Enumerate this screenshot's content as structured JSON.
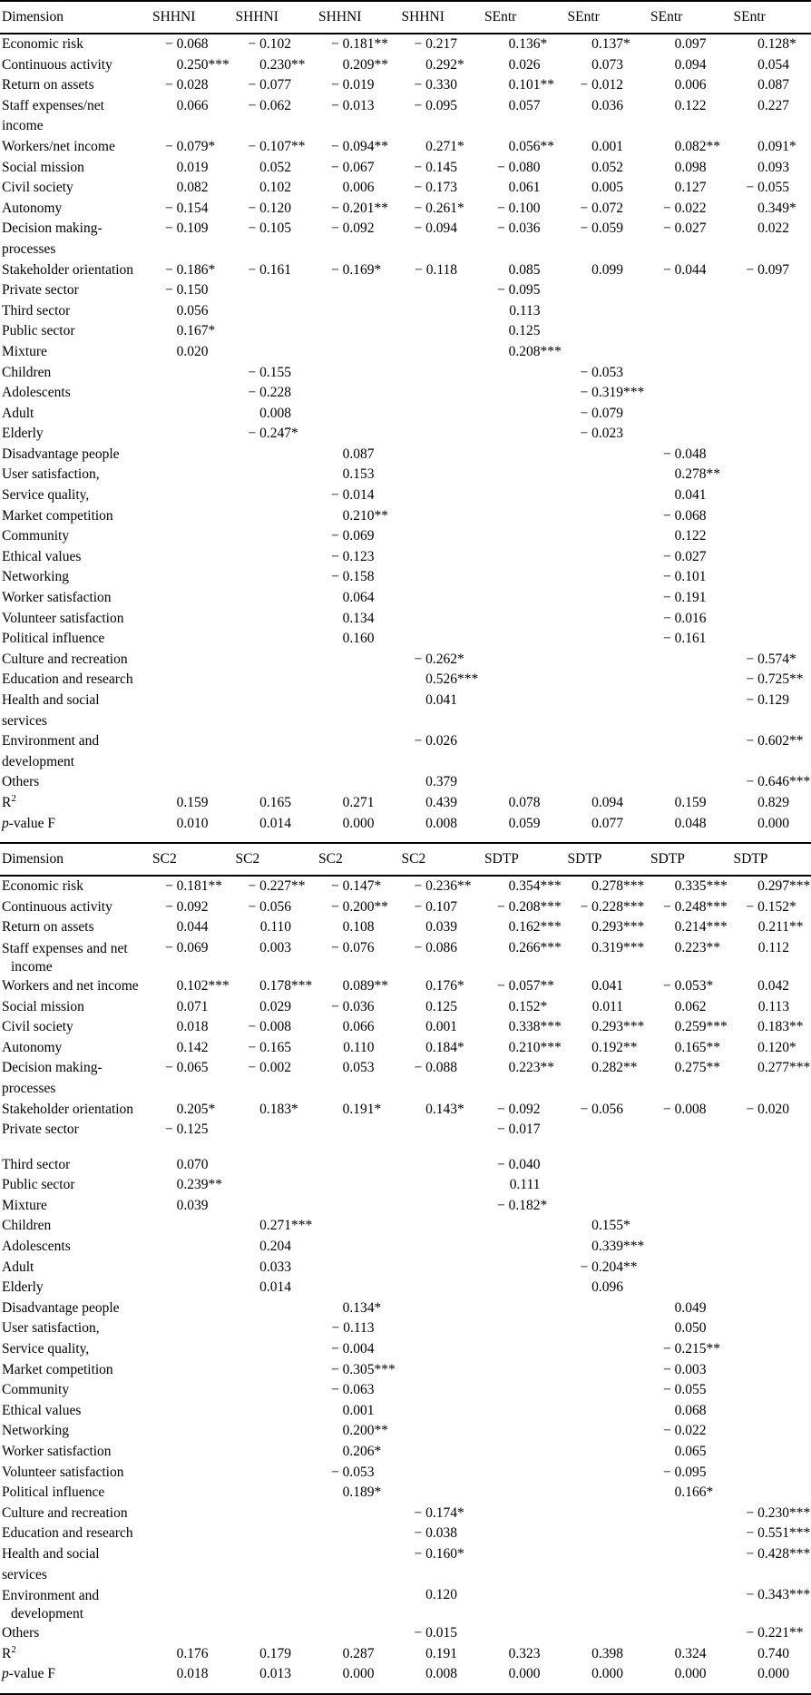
{
  "page": {
    "background": "#ffffff",
    "text_color": "#000000"
  },
  "tables": [
    {
      "columns": [
        "Dimension",
        "SHHNI",
        "SHHNI",
        "SHHNI",
        "SHHNI",
        "SEntr",
        "SEntr",
        "SEntr",
        "SEntr"
      ],
      "rows": [
        {
          "label": "Economic risk",
          "values": [
            "− 0.068",
            "− 0.102",
            "− 0.181**",
            "− 0.217",
            "0.136*",
            "0.137*",
            "0.097",
            "0.128*"
          ]
        },
        {
          "label": "Continuous activity",
          "values": [
            "0.250***",
            "0.230**",
            "0.209**",
            "0.292*",
            "0.026",
            "0.073",
            "0.094",
            "0.054"
          ]
        },
        {
          "label": "Return on assets",
          "values": [
            "− 0.028",
            "− 0.077",
            "− 0.019",
            "− 0.330",
            "0.101**",
            "− 0.012",
            "0.006",
            "0.087"
          ]
        },
        {
          "label": "Staff expenses/net income",
          "values": [
            "0.066",
            "− 0.062",
            "− 0.013",
            "− 0.095",
            "0.057",
            "0.036",
            "0.122",
            "0.227"
          ]
        },
        {
          "label": "Workers/net income",
          "values": [
            "− 0.079*",
            "− 0.107**",
            "− 0.094**",
            "0.271*",
            "0.056**",
            "0.001",
            "0.082**",
            "0.091*"
          ]
        },
        {
          "label": "Social mission",
          "values": [
            "0.019",
            "0.052",
            "− 0.067",
            "− 0.145",
            "− 0.080",
            "0.052",
            "0.098",
            "0.093"
          ]
        },
        {
          "label": "Civil society",
          "values": [
            "0.082",
            "0.102",
            "0.006",
            "− 0.173",
            "0.061",
            "0.005",
            "0.127",
            "− 0.055"
          ]
        },
        {
          "label": "Autonomy",
          "values": [
            "− 0.154",
            "− 0.120",
            "− 0.201**",
            "− 0.261*",
            "− 0.100",
            "− 0.072",
            "− 0.022",
            "0.349*"
          ]
        },
        {
          "label": "Decision making-processes",
          "values": [
            "− 0.109",
            "− 0.105",
            "− 0.092",
            "− 0.094",
            "− 0.036",
            "− 0.059",
            "− 0.027",
            "0.022"
          ]
        },
        {
          "label": "Stakeholder orientation",
          "values": [
            "− 0.186*",
            "− 0.161",
            "− 0.169*",
            "− 0.118",
            "0.085",
            "0.099",
            "− 0.044",
            "− 0.097"
          ]
        },
        {
          "label": "Private sector",
          "values": [
            "− 0.150",
            "",
            "",
            "",
            "− 0.095",
            "",
            "",
            ""
          ]
        },
        {
          "label": "Third sector",
          "values": [
            "0.056",
            "",
            "",
            "",
            "0.113",
            "",
            "",
            ""
          ]
        },
        {
          "label": "Public sector",
          "values": [
            "0.167*",
            "",
            "",
            "",
            "0.125",
            "",
            "",
            ""
          ]
        },
        {
          "label": "Mixture",
          "values": [
            "0.020",
            "",
            "",
            "",
            "0.208***",
            "",
            "",
            ""
          ]
        },
        {
          "label": "Children",
          "values": [
            "",
            "− 0.155",
            "",
            "",
            "",
            "− 0.053",
            "",
            ""
          ]
        },
        {
          "label": "Adolescents",
          "values": [
            "",
            "− 0.228",
            "",
            "",
            "",
            "− 0.319***",
            "",
            ""
          ]
        },
        {
          "label": "Adult",
          "values": [
            "",
            "0.008",
            "",
            "",
            "",
            "− 0.079",
            "",
            ""
          ]
        },
        {
          "label": "Elderly",
          "values": [
            "",
            "− 0.247*",
            "",
            "",
            "",
            "− 0.023",
            "",
            ""
          ]
        },
        {
          "label": "Disadvantage people",
          "values": [
            "",
            "",
            "0.087",
            "",
            "",
            "",
            "− 0.048",
            ""
          ]
        },
        {
          "label": "User satisfaction,",
          "values": [
            "",
            "",
            "0.153",
            "",
            "",
            "",
            "0.278**",
            ""
          ]
        },
        {
          "label": "Service quality,",
          "values": [
            "",
            "",
            "− 0.014",
            "",
            "",
            "",
            "0.041",
            ""
          ]
        },
        {
          "label": "Market competition",
          "values": [
            "",
            "",
            "0.210**",
            "",
            "",
            "",
            "− 0.068",
            ""
          ]
        },
        {
          "label": "Community",
          "values": [
            "",
            "",
            "− 0.069",
            "",
            "",
            "",
            "0.122",
            ""
          ]
        },
        {
          "label": "Ethical values",
          "values": [
            "",
            "",
            "− 0.123",
            "",
            "",
            "",
            "− 0.027",
            ""
          ]
        },
        {
          "label": "Networking",
          "values": [
            "",
            "",
            "− 0.158",
            "",
            "",
            "",
            "− 0.101",
            ""
          ]
        },
        {
          "label": "Worker satisfaction",
          "values": [
            "",
            "",
            "0.064",
            "",
            "",
            "",
            "− 0.191",
            ""
          ]
        },
        {
          "label": "Volunteer satisfaction",
          "values": [
            "",
            "",
            "0.134",
            "",
            "",
            "",
            "− 0.016",
            ""
          ]
        },
        {
          "label": "Political influence",
          "values": [
            "",
            "",
            "0.160",
            "",
            "",
            "",
            "− 0.161",
            ""
          ]
        },
        {
          "label": "Culture and recreation",
          "values": [
            "",
            "",
            "",
            "− 0.262*",
            "",
            "",
            "",
            "− 0.574*"
          ]
        },
        {
          "label": "Education and research",
          "values": [
            "",
            "",
            "",
            "0.526***",
            "",
            "",
            "",
            "− 0.725**"
          ]
        },
        {
          "label": "Health and social services",
          "values": [
            "",
            "",
            "",
            "0.041",
            "",
            "",
            "",
            "− 0.129"
          ]
        },
        {
          "label": "Environment and development",
          "values": [
            "",
            "",
            "",
            "− 0.026",
            "",
            "",
            "",
            "− 0.602**"
          ]
        },
        {
          "label": "Others",
          "values": [
            "",
            "",
            "",
            "0.379",
            "",
            "",
            "",
            "− 0.646***"
          ]
        },
        {
          "label": "R2",
          "style": "r2",
          "values": [
            "0.159",
            "0.165",
            "0.271",
            "0.439",
            "0.078",
            "0.094",
            "0.159",
            "0.829"
          ]
        },
        {
          "label": "p-value F",
          "style": "pf",
          "values": [
            "0.010",
            "0.014",
            "0.000",
            "0.008",
            "0.059",
            "0.077",
            "0.048",
            "0.000"
          ]
        }
      ]
    },
    {
      "columns": [
        "Dimension",
        "SC2",
        "SC2",
        "SC2",
        "SC2",
        "SDTP",
        "SDTP",
        "SDTP",
        "SDTP"
      ],
      "rows": [
        {
          "label": "Economic risk",
          "values": [
            "− 0.181**",
            "− 0.227**",
            "− 0.147*",
            "− 0.236**",
            "0.354***",
            "0.278***",
            "0.335***",
            "0.297***"
          ]
        },
        {
          "label": "Continuous activity",
          "values": [
            "− 0.092",
            "− 0.056",
            "− 0.200**",
            "− 0.107",
            "− 0.208***",
            "− 0.228***",
            "− 0.248***",
            "− 0.152*"
          ]
        },
        {
          "label": "Return on assets",
          "values": [
            "0.044",
            "0.110",
            "0.108",
            "0.039",
            "0.162***",
            "0.293***",
            "0.214***",
            "0.211**"
          ]
        },
        {
          "label": "Staff expenses and net",
          "label2": "income",
          "values": [
            "− 0.069",
            "0.003",
            "− 0.076",
            "− 0.086",
            "0.266***",
            "0.319***",
            "0.223**",
            "0.112"
          ]
        },
        {
          "label": "Workers and net income",
          "values": [
            "0.102***",
            "0.178***",
            "0.089**",
            "0.176*",
            "− 0.057**",
            "0.041",
            "− 0.053*",
            "0.042"
          ]
        },
        {
          "label": "Social mission",
          "values": [
            "0.071",
            "0.029",
            "− 0.036",
            "0.125",
            "0.152*",
            "0.011",
            "0.062",
            "0.113"
          ]
        },
        {
          "label": "Civil society",
          "values": [
            "0.018",
            "− 0.008",
            "0.066",
            "0.001",
            "0.338***",
            "0.293***",
            "0.259***",
            "0.183**"
          ]
        },
        {
          "label": "Autonomy",
          "values": [
            "0.142",
            "− 0.165",
            "0.110",
            "0.184*",
            "0.210***",
            "0.192**",
            "0.165**",
            "0.120*"
          ]
        },
        {
          "label": "Decision making-processes",
          "values": [
            "− 0.065",
            "− 0.002",
            "0.053",
            "− 0.088",
            "0.223**",
            "0.282**",
            "0.275**",
            "0.277***"
          ]
        },
        {
          "label": "Stakeholder orientation",
          "values": [
            "0.205*",
            "0.183*",
            "0.191*",
            "0.143*",
            "− 0.092",
            "− 0.056",
            "− 0.008",
            "− 0.020"
          ]
        },
        {
          "label": "Private sector",
          "gap_after": true,
          "values": [
            "− 0.125",
            "",
            "",
            "",
            "− 0.017",
            "",
            "",
            ""
          ]
        },
        {
          "label": "Third sector",
          "values": [
            "0.070",
            "",
            "",
            "",
            "− 0.040",
            "",
            "",
            ""
          ]
        },
        {
          "label": "Public sector",
          "values": [
            "0.239**",
            "",
            "",
            "",
            "0.111",
            "",
            "",
            ""
          ]
        },
        {
          "label": "Mixture",
          "values": [
            "0.039",
            "",
            "",
            "",
            "− 0.182*",
            "",
            "",
            ""
          ]
        },
        {
          "label": "Children",
          "values": [
            "",
            "0.271***",
            "",
            "",
            "",
            "0.155*",
            "",
            ""
          ]
        },
        {
          "label": "Adolescents",
          "values": [
            "",
            "0.204",
            "",
            "",
            "",
            "0.339***",
            "",
            ""
          ]
        },
        {
          "label": "Adult",
          "values": [
            "",
            "0.033",
            "",
            "",
            "",
            "− 0.204**",
            "",
            ""
          ]
        },
        {
          "label": "Elderly",
          "values": [
            "",
            "0.014",
            "",
            "",
            "",
            "0.096",
            "",
            ""
          ]
        },
        {
          "label": "Disadvantage people",
          "values": [
            "",
            "",
            "0.134*",
            "",
            "",
            "",
            "0.049",
            ""
          ]
        },
        {
          "label": "User satisfaction,",
          "values": [
            "",
            "",
            "− 0.113",
            "",
            "",
            "",
            "0.050",
            ""
          ]
        },
        {
          "label": "Service quality,",
          "values": [
            "",
            "",
            "− 0.004",
            "",
            "",
            "",
            "− 0.215**",
            ""
          ]
        },
        {
          "label": "Market competition",
          "values": [
            "",
            "",
            "− 0.305***",
            "",
            "",
            "",
            "− 0.003",
            ""
          ]
        },
        {
          "label": "Community",
          "values": [
            "",
            "",
            "− 0.063",
            "",
            "",
            "",
            "− 0.055",
            ""
          ]
        },
        {
          "label": "Ethical values",
          "values": [
            "",
            "",
            "0.001",
            "",
            "",
            "",
            "0.068",
            ""
          ]
        },
        {
          "label": "Networking",
          "values": [
            "",
            "",
            "0.200**",
            "",
            "",
            "",
            "− 0.022",
            ""
          ]
        },
        {
          "label": "Worker satisfaction",
          "values": [
            "",
            "",
            "0.206*",
            "",
            "",
            "",
            "0.065",
            ""
          ]
        },
        {
          "label": "Volunteer satisfaction",
          "values": [
            "",
            "",
            "− 0.053",
            "",
            "",
            "",
            "− 0.095",
            ""
          ]
        },
        {
          "label": "Political influence",
          "values": [
            "",
            "",
            "0.189*",
            "",
            "",
            "",
            "0.166*",
            ""
          ]
        },
        {
          "label": "Culture and recreation",
          "values": [
            "",
            "",
            "",
            "− 0.174*",
            "",
            "",
            "",
            "− 0.230***"
          ]
        },
        {
          "label": "Education and research",
          "values": [
            "",
            "",
            "",
            "− 0.038",
            "",
            "",
            "",
            "− 0.551***"
          ]
        },
        {
          "label": "Health and social services",
          "values": [
            "",
            "",
            "",
            "− 0.160*",
            "",
            "",
            "",
            "− 0.428***"
          ]
        },
        {
          "label": "Environment and",
          "label2": "development",
          "values": [
            "",
            "",
            "",
            "0.120",
            "",
            "",
            "",
            "− 0.343***"
          ]
        },
        {
          "label": "Others",
          "values": [
            "",
            "",
            "",
            "− 0.015",
            "",
            "",
            "",
            "− 0.221**"
          ]
        },
        {
          "label": "R2",
          "style": "r2",
          "values": [
            "0.176",
            "0.179",
            "0.287",
            "0.191",
            "0.323",
            "0.398",
            "0.324",
            "0.740"
          ]
        },
        {
          "label": "p-value F",
          "style": "pf",
          "values": [
            "0.018",
            "0.013",
            "0.000",
            "0.008",
            "0.000",
            "0.000",
            "0.000",
            "0.000"
          ]
        }
      ]
    }
  ]
}
